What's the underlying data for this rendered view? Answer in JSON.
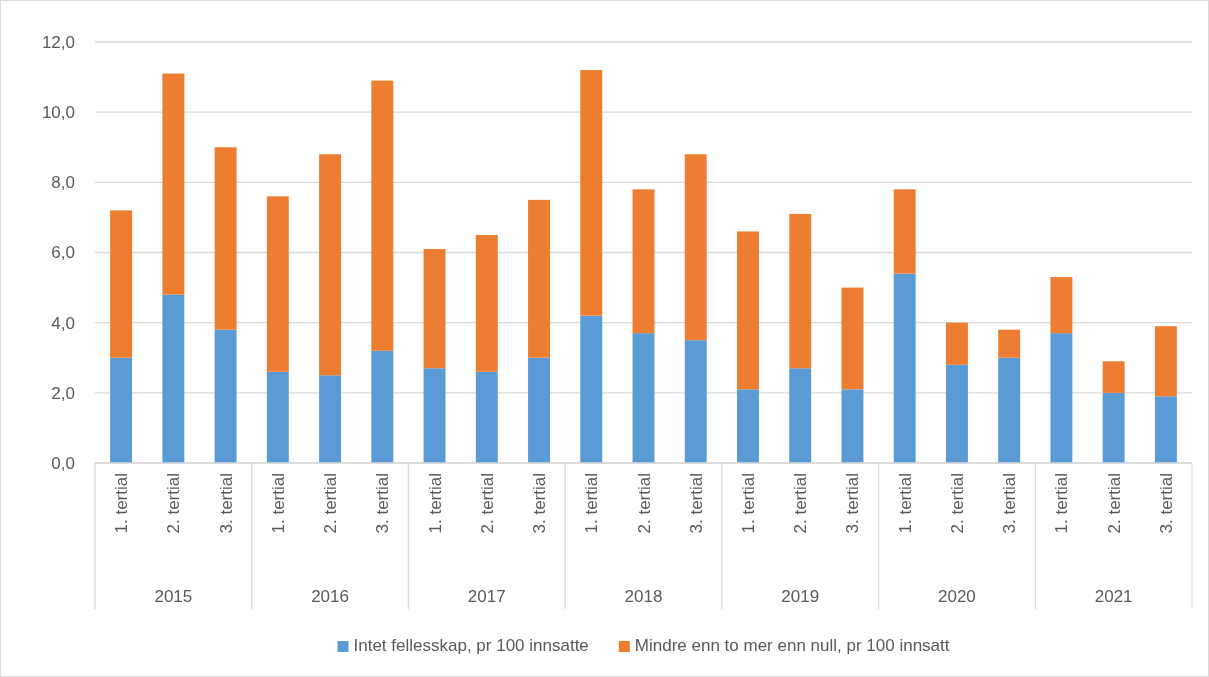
{
  "chart_data": {
    "type": "bar",
    "stacked": true,
    "categories": [
      "1. tertial",
      "2. tertial",
      "3. tertial",
      "1. tertial",
      "2. tertial",
      "3. tertial",
      "1. tertial",
      "2. tertial",
      "3. tertial",
      "1. tertial",
      "2. tertial",
      "3. tertial",
      "1. tertial",
      "2. tertial",
      "3. tertial",
      "1. tertial",
      "2. tertial",
      "3. tertial",
      "1. tertial",
      "2. tertial",
      "3. tertial"
    ],
    "series": [
      {
        "name": "Intet fellesskap, pr 100 innsatte",
        "color": "#5b9bd5",
        "values": [
          3.0,
          4.8,
          3.8,
          2.6,
          2.5,
          3.2,
          2.7,
          2.6,
          3.0,
          4.2,
          3.7,
          3.5,
          2.1,
          2.7,
          2.1,
          5.4,
          2.8,
          3.0,
          3.7,
          2.0,
          1.9
        ]
      },
      {
        "name": "Mindre enn to mer enn null, pr 100 innsatt",
        "color": "#ed7d31",
        "values": [
          4.2,
          6.3,
          5.2,
          5.0,
          6.3,
          7.7,
          3.4,
          3.9,
          4.5,
          7.0,
          4.1,
          5.3,
          4.5,
          4.4,
          2.9,
          2.4,
          1.2,
          0.8,
          1.6,
          0.9,
          2.0
        ]
      }
    ],
    "ylim": [
      0,
      12
    ],
    "yticks": [
      {
        "value": 0,
        "label": "0,0"
      },
      {
        "value": 2,
        "label": "2,0"
      },
      {
        "value": 4,
        "label": "4,0"
      },
      {
        "value": 6,
        "label": "6,0"
      },
      {
        "value": 8,
        "label": "8,0"
      },
      {
        "value": 10,
        "label": "10,0"
      },
      {
        "value": 12,
        "label": "12,0"
      }
    ],
    "grid": "y",
    "legend": "bottom",
    "annotations": [
      "2015",
      "2016",
      "2017",
      "2018",
      "2019",
      "2020",
      "2021"
    ]
  }
}
